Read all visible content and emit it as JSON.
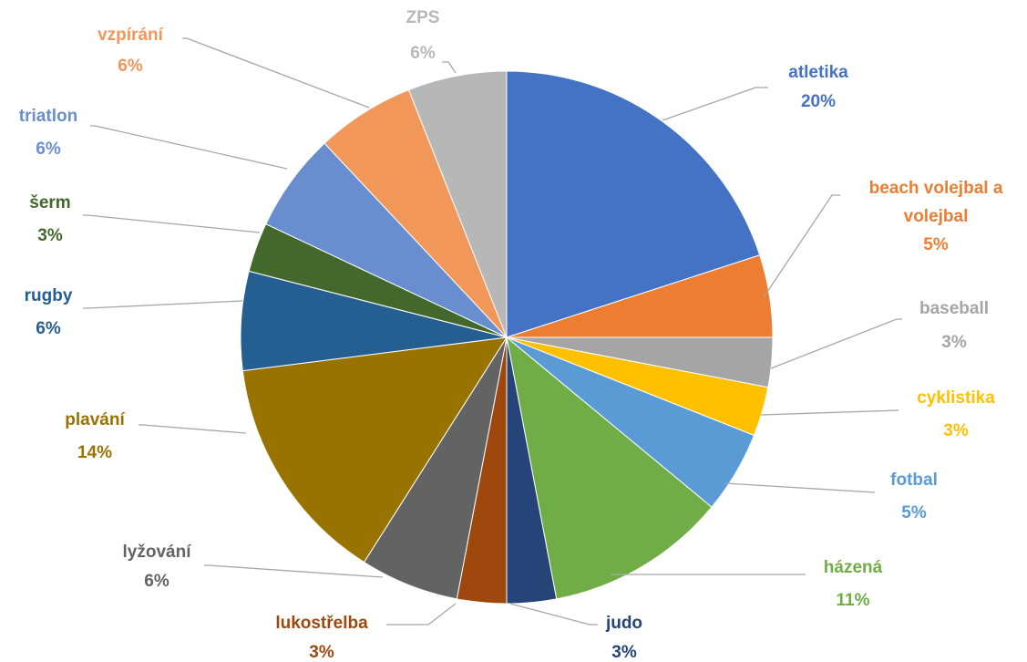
{
  "chart_data": {
    "type": "pie",
    "title": "",
    "start_angle_deg": 0,
    "direction": "clockwise",
    "slices": [
      {
        "name": "atletika",
        "value": 20,
        "label": "20%",
        "color": "#4472C4"
      },
      {
        "name": "beach volejbal a volejbal",
        "value": 5,
        "label": "5%",
        "color": "#ED7D31"
      },
      {
        "name": "baseball",
        "value": 3,
        "label": "3%",
        "color": "#A5A5A5"
      },
      {
        "name": "cyklistika",
        "value": 3,
        "label": "3%",
        "color": "#FFC000"
      },
      {
        "name": "fotbal",
        "value": 5,
        "label": "5%",
        "color": "#5B9BD5"
      },
      {
        "name": "házená",
        "value": 11,
        "label": "11%",
        "color": "#70AD47"
      },
      {
        "name": "judo",
        "value": 3,
        "label": "3%",
        "color": "#264478"
      },
      {
        "name": "lukostřelba",
        "value": 3,
        "label": "3%",
        "color": "#9E480E"
      },
      {
        "name": "lyžování",
        "value": 6,
        "label": "6%",
        "color": "#636363"
      },
      {
        "name": "plavání",
        "value": 14,
        "label": "14%",
        "color": "#997300"
      },
      {
        "name": "rugby",
        "value": 6,
        "label": "6%",
        "color": "#255E91"
      },
      {
        "name": "šerm",
        "value": 3,
        "label": "3%",
        "color": "#43682B"
      },
      {
        "name": "triatlon",
        "value": 6,
        "label": "6%",
        "color": "#698ED0"
      },
      {
        "name": "vzpírání",
        "value": 6,
        "label": "6%",
        "color": "#F1975A"
      },
      {
        "name": "ZPS",
        "value": 6,
        "label": "6%",
        "color": "#B7B7B7"
      }
    ]
  }
}
